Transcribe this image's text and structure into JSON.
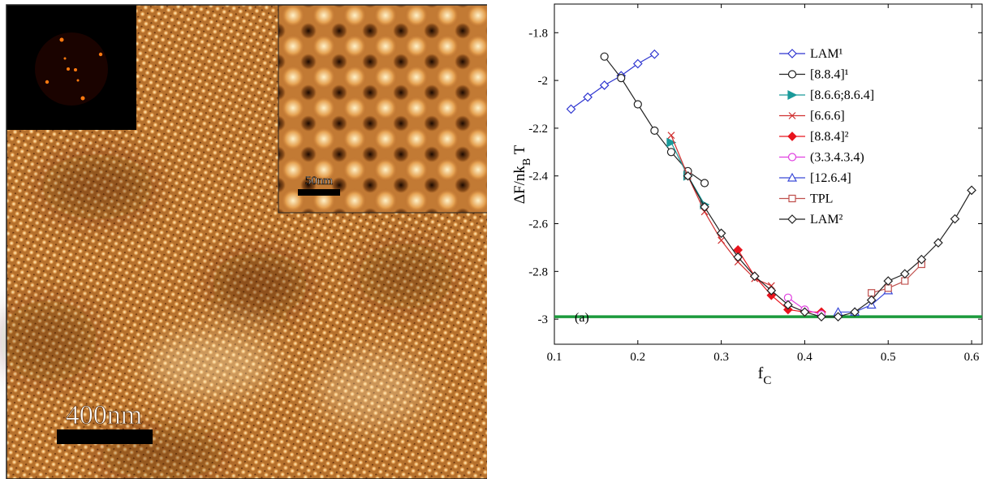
{
  "image": {
    "scale_label": "400nm",
    "inset_scale_label": "50nm"
  },
  "chart_data": {
    "type": "line",
    "x_label": {
      "main": "f",
      "sub": "C"
    },
    "y_label": {
      "main": "ΔF/nk",
      "sub": "B",
      "tail": " T"
    },
    "annotation": "(a)",
    "xlim": [
      0.1,
      0.6126
    ],
    "ylim": [
      -3.105,
      -1.68
    ],
    "xticks": [
      0.1,
      0.2,
      0.3,
      0.4,
      0.5,
      0.6
    ],
    "yticks": [
      -1.8,
      -2,
      -2.2,
      -2.4,
      -2.6,
      -2.8,
      -3
    ],
    "grid": false,
    "legend": "top-right",
    "hline": {
      "value": -2.99,
      "color": "#1b9a3c"
    },
    "series": [
      {
        "name": "LAM¹",
        "color": "#2e35d0",
        "marker": "diamond",
        "filled": false,
        "x": [
          0.12,
          0.14,
          0.16,
          0.18,
          0.2,
          0.22
        ],
        "values": [
          -2.12,
          -2.07,
          -2.02,
          -1.98,
          -1.93,
          -1.89
        ]
      },
      {
        "name": "[8.8.4]¹",
        "color": "#222222",
        "marker": "circle",
        "filled": false,
        "x": [
          0.16,
          0.18,
          0.2,
          0.22,
          0.24,
          0.26,
          0.28
        ],
        "values": [
          -1.9,
          -1.99,
          -2.1,
          -2.21,
          -2.3,
          -2.38,
          -2.43
        ]
      },
      {
        "name": "[8.6.6;8.6.4]",
        "color": "#1a9a9a",
        "marker": "triangle-right",
        "filled": true,
        "x": [
          0.24,
          0.26,
          0.28
        ],
        "values": [
          -2.26,
          -2.4,
          -2.52
        ]
      },
      {
        "name": "[6.6.6]",
        "color": "#d03030",
        "marker": "x",
        "filled": false,
        "x": [
          0.24,
          0.26,
          0.28,
          0.3,
          0.32,
          0.34,
          0.36
        ],
        "values": [
          -2.23,
          -2.4,
          -2.55,
          -2.67,
          -2.76,
          -2.83,
          -2.86
        ]
      },
      {
        "name": "[8.8.4]²",
        "color": "#e8141e",
        "marker": "diamond",
        "filled": true,
        "x": [
          0.32,
          0.34,
          0.36,
          0.38,
          0.4,
          0.42
        ],
        "values": [
          -2.71,
          -2.82,
          -2.9,
          -2.96,
          -2.97,
          -2.97
        ]
      },
      {
        "name": "(3.3.4.3.4)",
        "color": "#e040e0",
        "marker": "circle",
        "filled": false,
        "x": [
          0.38,
          0.4,
          0.42
        ],
        "values": [
          -2.91,
          -2.96,
          -2.98
        ]
      },
      {
        "name": "[12.6.4]",
        "color": "#3a4ad8",
        "marker": "triangle-up",
        "filled": false,
        "x": [
          0.44,
          0.46,
          0.48,
          0.5
        ],
        "values": [
          -2.97,
          -2.97,
          -2.94,
          -2.88
        ]
      },
      {
        "name": "TPL",
        "color": "#c0504d",
        "marker": "square",
        "filled": false,
        "x": [
          0.48,
          0.5,
          0.52,
          0.54
        ],
        "values": [
          -2.89,
          -2.87,
          -2.84,
          -2.77
        ]
      },
      {
        "name": "LAM²",
        "color": "#222222",
        "marker": "diamond",
        "filled": false,
        "x": [
          0.26,
          0.28,
          0.3,
          0.32,
          0.34,
          0.36,
          0.38,
          0.4,
          0.42,
          0.44,
          0.46,
          0.48,
          0.5,
          0.52,
          0.54,
          0.56,
          0.58,
          0.6
        ],
        "values": [
          -2.4,
          -2.53,
          -2.64,
          -2.74,
          -2.82,
          -2.88,
          -2.94,
          -2.97,
          -2.99,
          -2.99,
          -2.97,
          -2.92,
          -2.84,
          -2.81,
          -2.75,
          -2.68,
          -2.58,
          -2.46
        ]
      }
    ]
  }
}
